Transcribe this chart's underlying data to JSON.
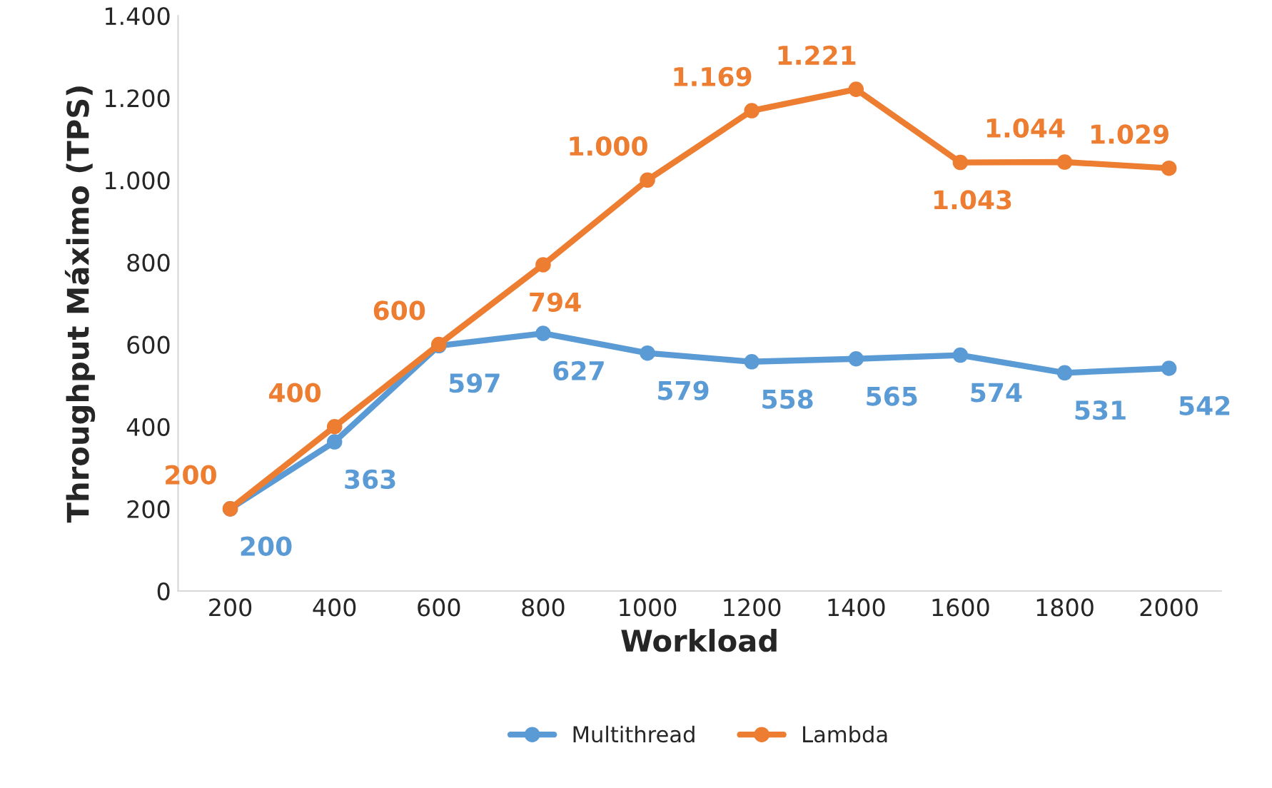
{
  "chart_data": {
    "type": "line",
    "xlabel": "Workload",
    "ylabel": "Throughput Máximo (TPS)",
    "categories": [
      "200",
      "400",
      "600",
      "800",
      "1000",
      "1200",
      "1400",
      "1600",
      "1800",
      "2000"
    ],
    "series": [
      {
        "name": "Multithread",
        "color": "#5b9bd5",
        "values": [
          200,
          363,
          597,
          627,
          579,
          558,
          565,
          574,
          531,
          542
        ],
        "value_labels": [
          "200",
          "363",
          "597",
          "627",
          "579",
          "558",
          "565",
          "574",
          "531",
          "542"
        ]
      },
      {
        "name": "Lambda",
        "color": "#ed7d31",
        "values": [
          200,
          400,
          600,
          794,
          1000,
          1169,
          1221,
          1043,
          1044,
          1029
        ],
        "value_labels": [
          "200",
          "400",
          "600",
          "794",
          "1.000",
          "1.169",
          "1.221",
          "1.043",
          "1.044",
          "1.029"
        ]
      }
    ],
    "ylim": [
      0,
      1400
    ],
    "yticks": [
      0,
      200,
      400,
      600,
      800,
      {
        "value": 1000,
        "label": "1.000"
      },
      {
        "value": 1200,
        "label": "1.200"
      },
      {
        "value": 1400,
        "label": "1.400"
      }
    ],
    "grid": false,
    "legend": "bottom",
    "marker": "circle",
    "line_style": "solid"
  }
}
